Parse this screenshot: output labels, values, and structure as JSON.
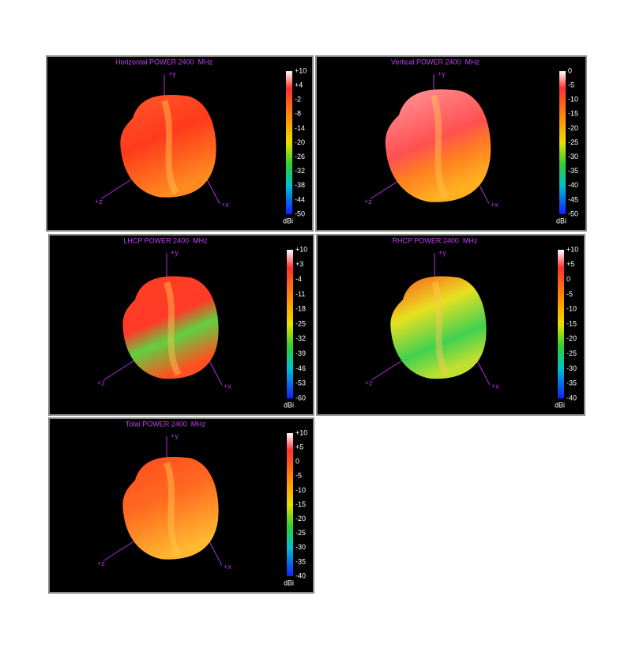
{
  "panels": [
    {
      "title": "Horizontal POWER 2400  MHz",
      "axes": [
        "+y",
        "+z",
        "+x"
      ],
      "scale_ticks": [
        "+10",
        "+4",
        "-2",
        "-8",
        "-14",
        "-20",
        "-26",
        "-32",
        "-38",
        "-44",
        "-50"
      ],
      "unit": "dBi"
    },
    {
      "title": "Vertical POWER 2400  MHz",
      "axes": [
        "+y",
        "+z",
        "+x"
      ],
      "scale_ticks": [
        "0",
        "-5",
        "-10",
        "-15",
        "-20",
        "-25",
        "-30",
        "-35",
        "-40",
        "-45",
        "-50"
      ],
      "unit": "dBi"
    },
    {
      "title": "LHCP POWER 2400  MHz",
      "axes": [
        "+y",
        "+z",
        "+x"
      ],
      "scale_ticks": [
        "+10",
        "+3",
        "-4",
        "-11",
        "-18",
        "-25",
        "-32",
        "-39",
        "-46",
        "-53",
        "-60"
      ],
      "unit": "dBi"
    },
    {
      "title": "RHCP POWER 2400  MHz",
      "axes": [
        "+y",
        "+z",
        "+x"
      ],
      "scale_ticks": [
        "+10",
        "+5",
        "0",
        "-5",
        "-10",
        "-15",
        "-20",
        "-25",
        "-30",
        "-35",
        "-40"
      ],
      "unit": "dBi"
    },
    {
      "title": "Total POWER 2400  MHz",
      "axes": [
        "+y",
        "+z",
        "+x"
      ],
      "scale_ticks": [
        "+10",
        "+5",
        "0",
        "-5",
        "-10",
        "-15",
        "-20",
        "-25",
        "-30",
        "-35",
        "-40"
      ],
      "unit": "dBi"
    }
  ]
}
